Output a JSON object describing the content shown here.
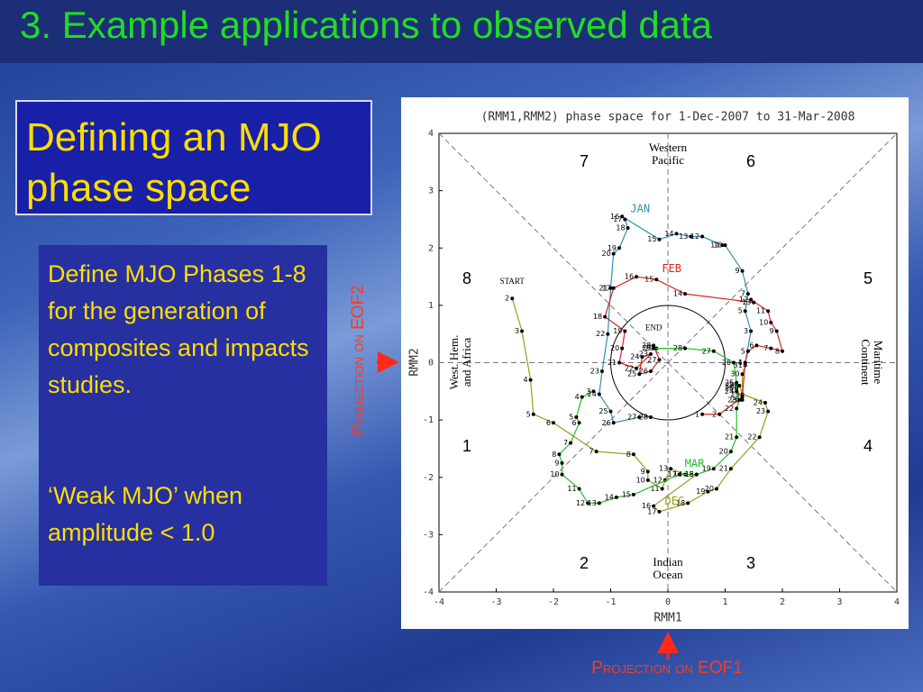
{
  "title": "3. Example applications to observed data",
  "heading": "Defining an MJO phase space",
  "body": [
    "Define MJO Phases 1-8  for the generation of composites and impacts studies.",
    "‘Weak MJO’ when amplitude < 1.0"
  ],
  "annotations": {
    "eof2": "Projection on EOF2",
    "eof1": "Projection on EOF1"
  },
  "chart_data": {
    "type": "line",
    "title": "(RMM1,RMM2) phase space for  1-Dec-2007 to 31-Mar-2008",
    "x_label": "RMM1",
    "y_label": "RMM2",
    "xlim": [
      -4,
      4
    ],
    "ylim": [
      -4,
      4
    ],
    "xticks": [
      -4,
      -3,
      -2,
      -1,
      0,
      1,
      2,
      3,
      4
    ],
    "yticks": [
      -4,
      -3,
      -2,
      -1,
      0,
      1,
      2,
      3,
      4
    ],
    "phases": [
      1,
      2,
      3,
      4,
      5,
      6,
      7,
      8
    ],
    "regions": [
      "Western Pacific",
      "Indian Ocean",
      "West. Hem. and Africa",
      "Maritime Continent"
    ],
    "start_label": "START",
    "end_label": "END",
    "series": [
      {
        "name": "DEC",
        "color": "#9a9a1e",
        "days": [
          2,
          3,
          4,
          5,
          6,
          7,
          8,
          9,
          10,
          11,
          12,
          13,
          14,
          15,
          16,
          17,
          18,
          19,
          20,
          21,
          22,
          23,
          24,
          25,
          26,
          27,
          28,
          29,
          30,
          31
        ],
        "x": [
          -2.72,
          -2.55,
          -2.4,
          -2.35,
          -2.0,
          -1.25,
          -0.6,
          -0.35,
          -0.35,
          -0.1,
          -0.05,
          0.05,
          0.3,
          0.5,
          -0.25,
          -0.15,
          0.35,
          0.7,
          0.85,
          1.1,
          1.6,
          1.75,
          1.7,
          1.3,
          1.25,
          1.2,
          1.2,
          1.3,
          1.3,
          1.35
        ],
        "y": [
          1.12,
          0.55,
          -0.3,
          -0.9,
          -1.05,
          -1.55,
          -1.6,
          -1.9,
          -2.05,
          -2.2,
          -2.05,
          -1.85,
          -1.95,
          -1.95,
          -2.5,
          -2.6,
          -2.45,
          -2.25,
          -2.2,
          -1.85,
          -1.3,
          -0.85,
          -0.7,
          -0.55,
          -0.4,
          -0.4,
          -0.45,
          -0.65,
          -0.2,
          -0.05
        ]
      },
      {
        "name": "JAN",
        "color": "#2f8fb0",
        "days": [
          1,
          3,
          5,
          7,
          9,
          10,
          11,
          12,
          13,
          14,
          15,
          16,
          17,
          18,
          19,
          20,
          21,
          22,
          23,
          24,
          25,
          26,
          27,
          28
        ],
        "x": [
          1.35,
          1.45,
          1.35,
          1.4,
          1.3,
          1.0,
          0.95,
          0.6,
          0.4,
          0.15,
          -0.15,
          -0.8,
          -0.75,
          -0.7,
          -0.85,
          -0.95,
          -1.0,
          -1.05,
          -1.15,
          -1.2,
          -1.0,
          -0.95,
          -0.5,
          -0.3
        ],
        "y": [
          0.0,
          0.55,
          0.9,
          1.2,
          1.6,
          2.05,
          2.05,
          2.2,
          2.2,
          2.25,
          2.15,
          2.55,
          2.5,
          2.35,
          2.0,
          1.9,
          1.3,
          0.5,
          -0.15,
          -0.55,
          -0.85,
          -1.05,
          -0.95,
          -0.95
        ]
      },
      {
        "name": "FEB",
        "color": "#e02020",
        "days": [
          1,
          2,
          3,
          4,
          5,
          6,
          7,
          8,
          9,
          10,
          11,
          12,
          13,
          14,
          15,
          16,
          17,
          18,
          19,
          20,
          21,
          22,
          23,
          24,
          25,
          26,
          27,
          28,
          29
        ],
        "x": [
          0.6,
          0.9,
          1.3,
          1.35,
          1.4,
          1.55,
          1.8,
          2.0,
          1.9,
          1.8,
          1.75,
          1.45,
          1.5,
          0.3,
          -0.2,
          -0.55,
          -0.95,
          -1.1,
          -0.75,
          -0.8,
          -0.85,
          -0.55,
          -0.3,
          -0.45,
          -0.5,
          -0.3,
          -0.15,
          -0.25,
          -0.2
        ],
        "y": [
          -0.9,
          -0.9,
          -0.6,
          0.0,
          0.2,
          0.3,
          0.25,
          0.2,
          0.55,
          0.7,
          0.9,
          1.1,
          1.05,
          1.2,
          1.45,
          1.5,
          1.3,
          0.8,
          0.55,
          0.25,
          0.0,
          -0.1,
          0.15,
          0.1,
          -0.2,
          -0.15,
          0.05,
          0.3,
          0.25
        ]
      },
      {
        "name": "MAR",
        "color": "#22c022",
        "days": [
          3,
          4,
          5,
          6,
          7,
          8,
          9,
          10,
          11,
          12,
          13,
          14,
          15,
          17,
          18,
          19,
          20,
          21,
          22,
          23,
          24,
          25,
          26,
          27,
          28,
          29
        ],
        "x": [
          -1.3,
          -1.5,
          -1.6,
          -1.55,
          -1.7,
          -1.9,
          -1.85,
          -1.85,
          -1.55,
          -1.4,
          -1.2,
          -0.9,
          -0.6,
          0.2,
          0.5,
          0.8,
          1.1,
          1.2,
          1.2,
          1.25,
          1.2,
          1.2,
          1.15,
          0.8,
          0.3,
          -0.25
        ],
        "y": [
          -0.5,
          -0.6,
          -0.95,
          -1.05,
          -1.4,
          -1.6,
          -1.75,
          -1.95,
          -2.2,
          -2.45,
          -2.45,
          -2.35,
          -2.3,
          -1.95,
          -1.95,
          -1.85,
          -1.55,
          -1.3,
          -0.8,
          -0.65,
          -0.5,
          -0.35,
          0.0,
          0.2,
          0.25,
          0.25
        ]
      }
    ]
  }
}
